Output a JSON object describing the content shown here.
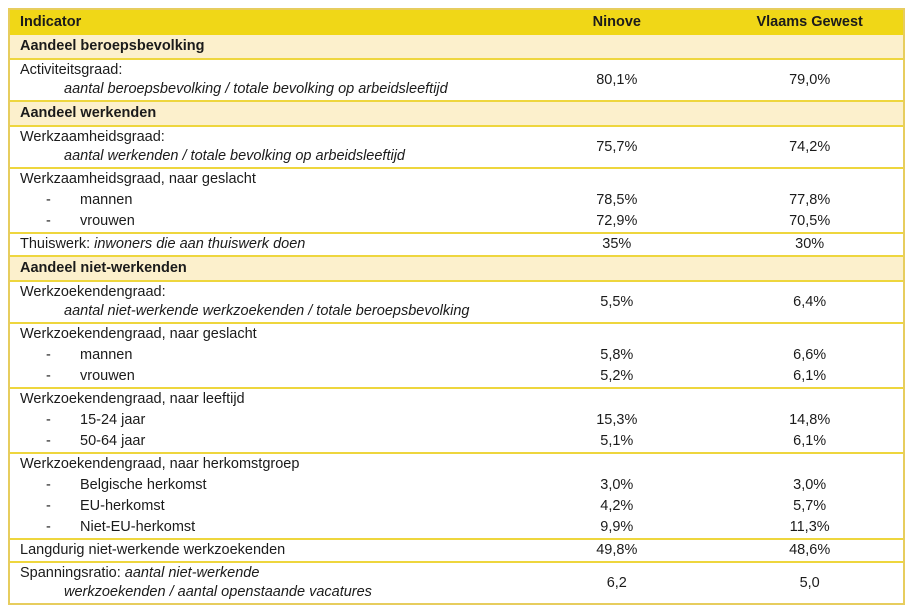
{
  "colors": {
    "header_bg": "#F0D717",
    "section_bg": "#FCF0CC",
    "row_divider": "#EED63E",
    "outer_border": "#E7CD5E",
    "text": "#1B1B1B"
  },
  "table": {
    "header": {
      "indicator": "Indicator",
      "col_ninove": "Ninove",
      "col_vlaams": "Vlaams Gewest"
    },
    "rows": [
      {
        "kind": "section",
        "label": "Aandeel beroepsbevolking"
      },
      {
        "kind": "merged",
        "lines": [
          {
            "parts": [
              {
                "t": "Activiteitsgraad:"
              }
            ]
          },
          {
            "indent": true,
            "parts": [
              {
                "t": "aantal beroepsbevolking / totale bevolking op arbeidsleeftijd",
                "i": true
              }
            ]
          }
        ],
        "ninove": "80,1%",
        "vlaams": "79,0%"
      },
      {
        "kind": "section",
        "label": "Aandeel werkenden"
      },
      {
        "kind": "merged",
        "lines": [
          {
            "parts": [
              {
                "t": "Werkzaamheidsgraad:"
              }
            ]
          },
          {
            "indent": true,
            "parts": [
              {
                "t": "aantal werkenden / totale bevolking op arbeidsleeftijd",
                "i": true
              }
            ]
          }
        ],
        "ninove": "75,7%",
        "vlaams": "74,2%"
      },
      {
        "kind": "lines",
        "lines": [
          {
            "parts": [
              {
                "t": "Werkzaamheidsgraad, naar geslacht"
              }
            ],
            "ninove": "",
            "vlaams": ""
          },
          {
            "dash": true,
            "parts": [
              {
                "t": "mannen"
              }
            ],
            "ninove": "78,5%",
            "vlaams": "77,8%"
          },
          {
            "dash": true,
            "parts": [
              {
                "t": "vrouwen"
              }
            ],
            "ninove": "72,9%",
            "vlaams": "70,5%"
          }
        ]
      },
      {
        "kind": "lines",
        "lines": [
          {
            "parts": [
              {
                "t": "Thuiswerk: "
              },
              {
                "t": "inwoners die aan thuiswerk doen",
                "i": true
              }
            ],
            "ninove": "35%",
            "vlaams": "30%"
          }
        ]
      },
      {
        "kind": "section",
        "label": "Aandeel niet-werkenden"
      },
      {
        "kind": "merged",
        "lines": [
          {
            "parts": [
              {
                "t": "Werkzoekendengraad:"
              }
            ]
          },
          {
            "indent": true,
            "parts": [
              {
                "t": "aantal niet-werkende werkzoekenden / totale beroepsbevolking",
                "i": true
              }
            ]
          }
        ],
        "ninove": "5,5%",
        "vlaams": "6,4%"
      },
      {
        "kind": "lines",
        "lines": [
          {
            "parts": [
              {
                "t": "Werkzoekendengraad, naar geslacht"
              }
            ],
            "ninove": "",
            "vlaams": ""
          },
          {
            "dash": true,
            "parts": [
              {
                "t": "mannen"
              }
            ],
            "ninove": "5,8%",
            "vlaams": "6,6%"
          },
          {
            "dash": true,
            "parts": [
              {
                "t": "vrouwen"
              }
            ],
            "ninove": "5,2%",
            "vlaams": "6,1%"
          }
        ]
      },
      {
        "kind": "lines",
        "lines": [
          {
            "parts": [
              {
                "t": "Werkzoekendengraad, naar leeftijd"
              }
            ],
            "ninove": "",
            "vlaams": ""
          },
          {
            "dash": true,
            "parts": [
              {
                "t": "15-24 jaar"
              }
            ],
            "ninove": "15,3%",
            "vlaams": "14,8%"
          },
          {
            "dash": true,
            "parts": [
              {
                "t": "50-64 jaar"
              }
            ],
            "ninove": "5,1%",
            "vlaams": "6,1%"
          }
        ]
      },
      {
        "kind": "lines",
        "lines": [
          {
            "parts": [
              {
                "t": "Werkzoekendengraad, naar herkomstgroep"
              }
            ],
            "ninove": "",
            "vlaams": ""
          },
          {
            "dash": true,
            "parts": [
              {
                "t": "Belgische herkomst"
              }
            ],
            "ninove": "3,0%",
            "vlaams": "3,0%"
          },
          {
            "dash": true,
            "parts": [
              {
                "t": "EU-herkomst"
              }
            ],
            "ninove": "4,2%",
            "vlaams": "5,7%"
          },
          {
            "dash": true,
            "parts": [
              {
                "t": "Niet-EU-herkomst"
              }
            ],
            "ninove": "9,9%",
            "vlaams": "11,3%"
          }
        ]
      },
      {
        "kind": "lines",
        "lines": [
          {
            "parts": [
              {
                "t": "Langdurig niet-werkende werkzoekenden"
              }
            ],
            "ninove": "49,8%",
            "vlaams": "48,6%"
          }
        ]
      },
      {
        "kind": "merged",
        "lines": [
          {
            "parts": [
              {
                "t": "Spanningsratio: "
              },
              {
                "t": "aantal niet-werkende",
                "i": true
              }
            ]
          },
          {
            "indent": true,
            "parts": [
              {
                "t": "werkzoekenden / aantal openstaande vacatures",
                "i": true
              }
            ]
          }
        ],
        "ninove": "6,2",
        "vlaams": "5,0"
      }
    ]
  }
}
